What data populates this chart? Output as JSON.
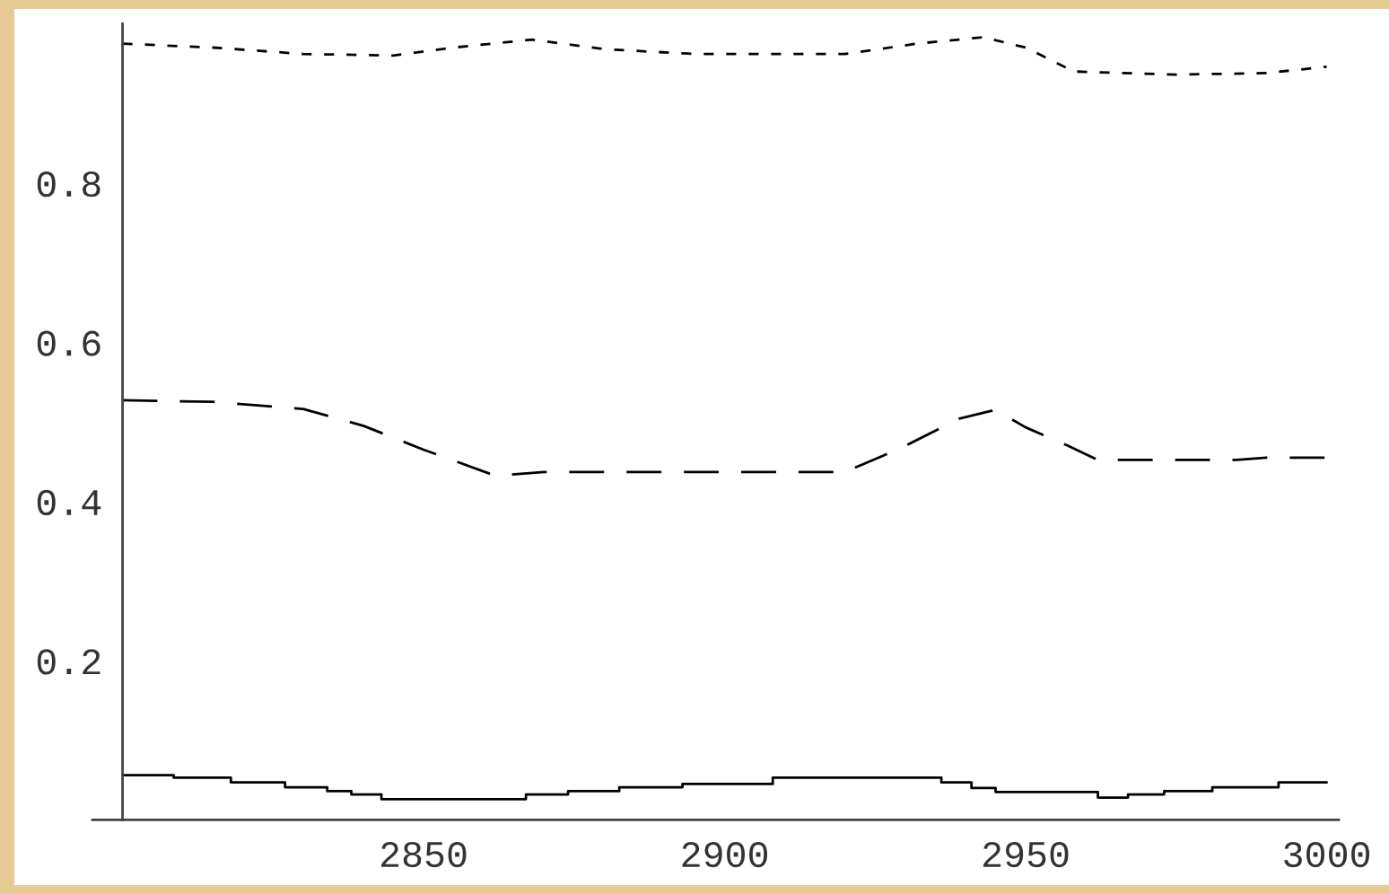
{
  "chart_data": {
    "type": "line",
    "xlim": [
      2795,
      3002
    ],
    "ylim": [
      0,
      1.0
    ],
    "xticks": [
      2850,
      2900,
      2950,
      3000
    ],
    "yticks": [
      0.2,
      0.4,
      0.6,
      0.8
    ],
    "grid": false,
    "legend": false,
    "series": [
      {
        "color": "#000000",
        "line_style": "dotted",
        "x": [
          2800,
          2815,
          2830,
          2845,
          2855,
          2868,
          2880,
          2895,
          2920,
          2932,
          2943,
          2950,
          2958,
          2975,
          2990,
          3000
        ],
        "values": [
          0.975,
          0.97,
          0.962,
          0.96,
          0.97,
          0.98,
          0.968,
          0.962,
          0.962,
          0.975,
          0.983,
          0.97,
          0.94,
          0.936,
          0.938,
          0.946
        ]
      },
      {
        "color": "#000000",
        "line_style": "dashed",
        "x": [
          2800,
          2815,
          2830,
          2840,
          2850,
          2862,
          2870,
          2920,
          2929,
          2939,
          2945,
          2950,
          2957,
          2962,
          2985,
          2990,
          3000
        ],
        "values": [
          0.527,
          0.525,
          0.516,
          0.495,
          0.465,
          0.432,
          0.437,
          0.437,
          0.466,
          0.504,
          0.515,
          0.493,
          0.47,
          0.452,
          0.452,
          0.455,
          0.455
        ]
      },
      {
        "type": "step",
        "color": "#000000",
        "line_style": "solid",
        "x": [
          2800,
          2808.5,
          2818,
          2827,
          2834,
          2838,
          2843,
          2867,
          2874,
          2882.5,
          2893,
          2908,
          2936,
          2941,
          2945,
          2962,
          2967,
          2973,
          2981,
          2992,
          3000
        ],
        "values": [
          0.056,
          0.053,
          0.047,
          0.041,
          0.036,
          0.032,
          0.026,
          0.032,
          0.036,
          0.041,
          0.045,
          0.053,
          0.047,
          0.04,
          0.035,
          0.028,
          0.032,
          0.036,
          0.041,
          0.047,
          0.047
        ]
      }
    ]
  }
}
